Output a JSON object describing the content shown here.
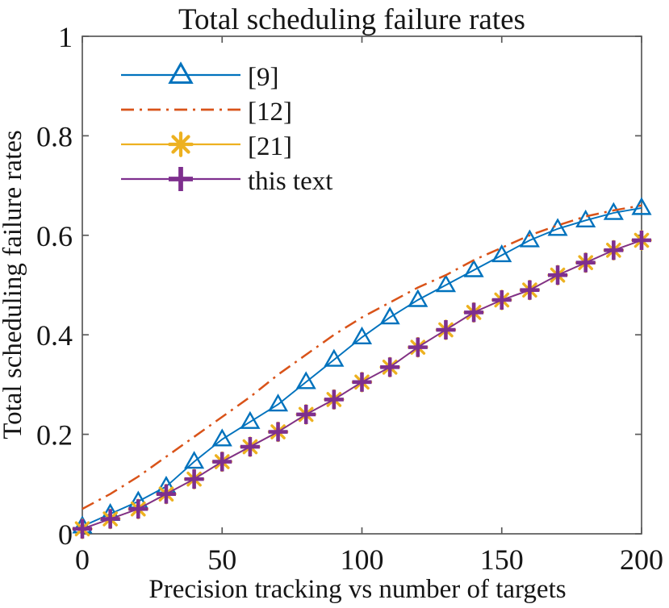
{
  "chart_data": {
    "type": "line",
    "title": "Total scheduling failure rates",
    "xlabel": "Precision tracking vs number of targets",
    "ylabel": "Total scheduling failure rates",
    "xlim": [
      0,
      200
    ],
    "ylim": [
      0,
      1
    ],
    "xticks": [
      0,
      50,
      100,
      150,
      200
    ],
    "yticks": [
      0,
      0.2,
      0.4,
      0.6,
      0.8,
      1
    ],
    "grid": false,
    "legend_position": "upper-left-inside",
    "legend_border": false,
    "axis_color": "#5a5a5a",
    "text_color": "#161616",
    "x": [
      0,
      10,
      20,
      30,
      40,
      50,
      60,
      70,
      80,
      90,
      100,
      110,
      120,
      130,
      140,
      150,
      160,
      170,
      180,
      190,
      200
    ],
    "series": [
      {
        "name": "[9]",
        "color": "#0072BD",
        "line_style": "solid",
        "marker": "triangle-up",
        "values": [
          0.015,
          0.04,
          0.065,
          0.095,
          0.145,
          0.19,
          0.225,
          0.26,
          0.305,
          0.35,
          0.395,
          0.435,
          0.47,
          0.5,
          0.53,
          0.56,
          0.59,
          0.613,
          0.63,
          0.645,
          0.655
        ]
      },
      {
        "name": "[12]",
        "color": "#D95319",
        "line_style": "dash-dot",
        "marker": "none",
        "values": [
          0.05,
          0.08,
          0.115,
          0.155,
          0.195,
          0.235,
          0.275,
          0.32,
          0.36,
          0.4,
          0.435,
          0.465,
          0.495,
          0.52,
          0.55,
          0.575,
          0.6,
          0.62,
          0.638,
          0.65,
          0.66
        ]
      },
      {
        "name": "[21]",
        "color": "#EDB120",
        "line_style": "solid",
        "marker": "asterisk",
        "values": [
          0.01,
          0.03,
          0.05,
          0.08,
          0.11,
          0.145,
          0.175,
          0.205,
          0.24,
          0.27,
          0.305,
          0.335,
          0.375,
          0.41,
          0.445,
          0.47,
          0.49,
          0.52,
          0.545,
          0.57,
          0.59
        ]
      },
      {
        "name": "this text",
        "color": "#7E2F8E",
        "line_style": "solid",
        "marker": "plus",
        "values": [
          0.01,
          0.03,
          0.05,
          0.08,
          0.11,
          0.145,
          0.175,
          0.205,
          0.24,
          0.27,
          0.305,
          0.335,
          0.375,
          0.41,
          0.445,
          0.47,
          0.49,
          0.52,
          0.545,
          0.57,
          0.59
        ]
      }
    ]
  }
}
